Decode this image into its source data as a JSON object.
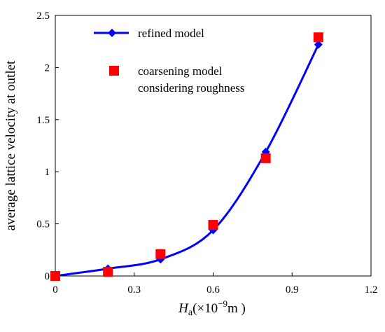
{
  "chart_data": {
    "type": "line",
    "xlabel": {
      "main": "H",
      "sub": "a",
      "open": "(×10",
      "sup": "−9",
      "close": "m )"
    },
    "ylabel": "average lattice velocity at outlet",
    "xlim": [
      0,
      1.2
    ],
    "ylim": [
      0,
      2.5
    ],
    "xticks": [
      "0",
      "0.3",
      "0.6",
      "0.9",
      "1.2"
    ],
    "yticks": [
      "0",
      "0.5",
      "1",
      "1.5",
      "2",
      "2.5"
    ],
    "grid": false,
    "legend_position": "top-left",
    "series": [
      {
        "name": "refined model",
        "style": "line-diamond",
        "color": "#0000ff",
        "x": [
          0,
          0.2,
          0.4,
          0.6,
          0.8,
          1.0
        ],
        "y": [
          0,
          0.07,
          0.16,
          0.44,
          1.19,
          2.22
        ]
      },
      {
        "name": "coarsening model considering roughness",
        "name_lines": [
          "coarsening model",
          "considering roughness"
        ],
        "style": "square-markers",
        "color": "#ff0000",
        "x": [
          0,
          0.2,
          0.4,
          0.6,
          0.8,
          1.0
        ],
        "y": [
          0,
          0.04,
          0.21,
          0.49,
          1.13,
          2.29
        ]
      }
    ]
  }
}
